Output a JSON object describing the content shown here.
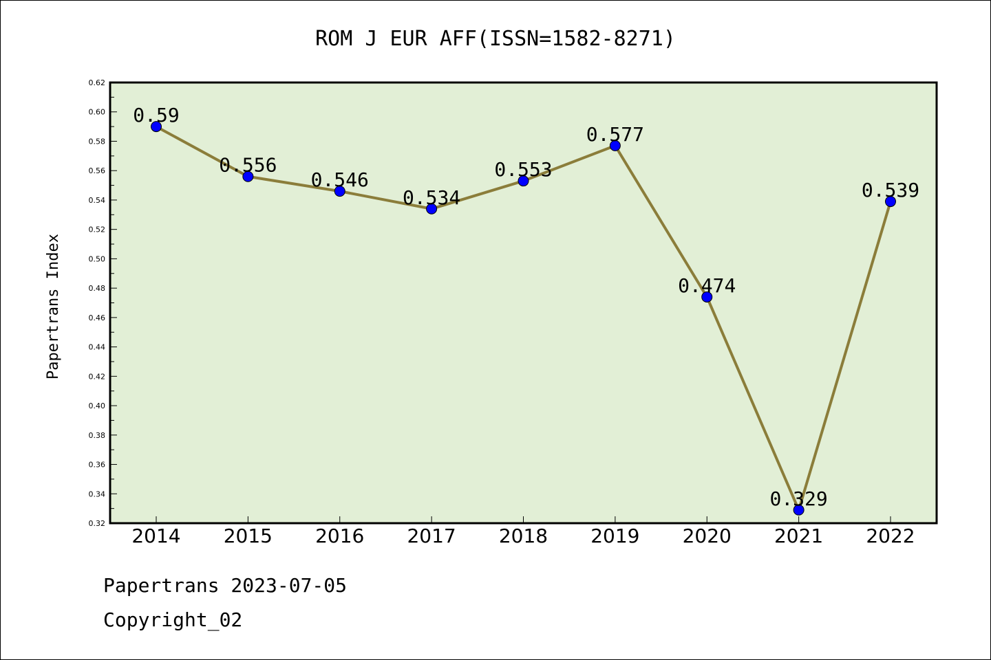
{
  "chart_data": {
    "type": "line",
    "title": "ROM J EUR AFF(ISSN=1582-8271)",
    "xlabel": "",
    "ylabel": "Papertrans Index",
    "categories": [
      "2014",
      "2015",
      "2016",
      "2017",
      "2018",
      "2019",
      "2020",
      "2021",
      "2022"
    ],
    "series": [
      {
        "values": [
          0.59,
          0.556,
          0.546,
          0.534,
          0.553,
          0.577,
          0.474,
          0.329,
          0.539
        ]
      }
    ],
    "data_labels": [
      "0.59",
      "0.556",
      "0.546",
      "0.534",
      "0.553",
      "0.577",
      "0.474",
      "0.329",
      "0.539"
    ],
    "ylim": [
      0.32,
      0.62
    ],
    "yticks": [
      "0.32",
      "0.34",
      "0.36",
      "0.38",
      "0.40",
      "0.42",
      "0.44",
      "0.46",
      "0.48",
      "0.50",
      "0.52",
      "0.54",
      "0.56",
      "0.58",
      "0.60",
      "0.62"
    ],
    "grid": false,
    "legend": "none",
    "colors": {
      "line": "#8B7D3A",
      "marker": "#0000FF",
      "plot_background": "#E2EFD6"
    }
  },
  "footer": {
    "line1": "Papertrans 2023-07-05",
    "line2": "Copyright_02"
  }
}
